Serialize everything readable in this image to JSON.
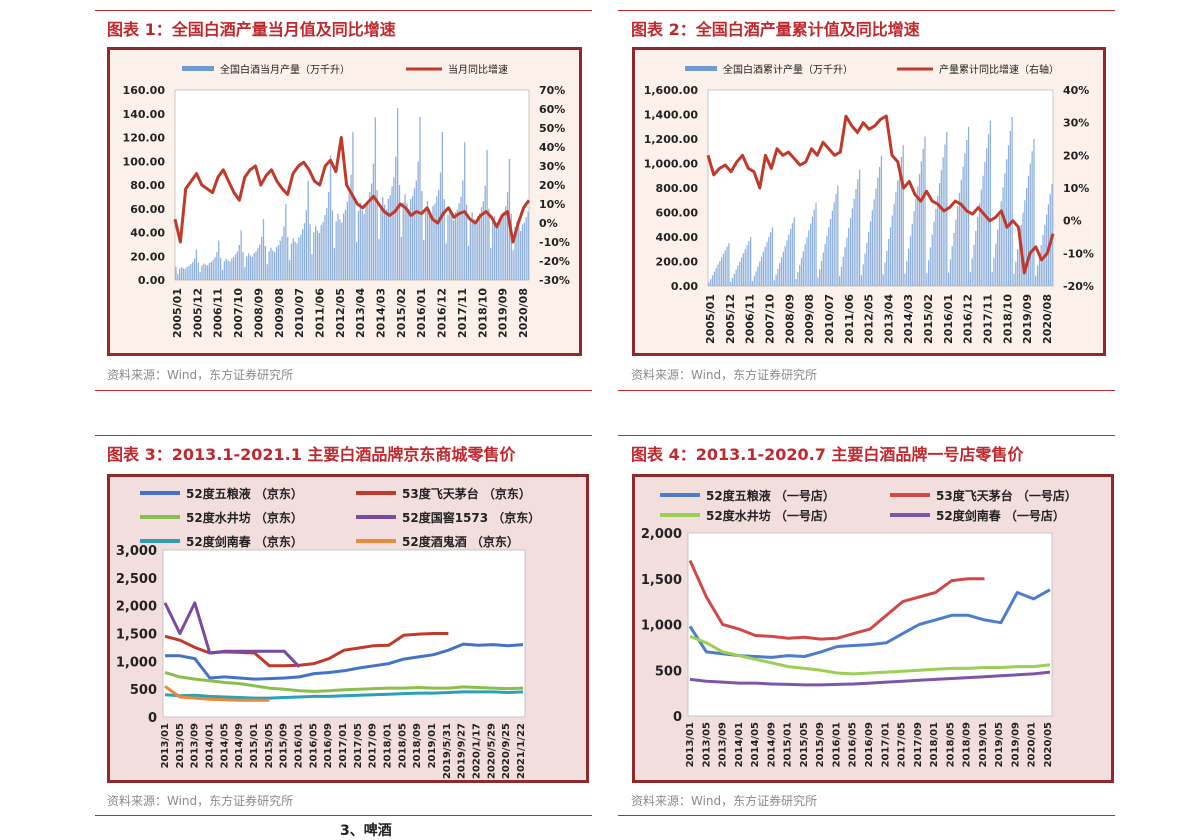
{
  "section_heading": "3、啤酒",
  "charts": [
    {
      "title": "图表 1：全国白酒产量当月值及同比增速",
      "source": "资料来源：Wind，东方证券研究所",
      "chart_data": {
        "type": "bar+line",
        "legend": [
          "全国白酒当月产量（万千升）",
          "当月同比增速"
        ],
        "left_axis": {
          "ticks": [
            "0.00",
            "20.00",
            "40.00",
            "60.00",
            "80.00",
            "100.00",
            "120.00",
            "140.00",
            "160.00"
          ],
          "min": 0,
          "max": 160
        },
        "right_axis": {
          "ticks": [
            "-30%",
            "-20%",
            "-10%",
            "0%",
            "10%",
            "20%",
            "30%",
            "40%",
            "50%",
            "60%",
            "70%"
          ],
          "min": -30,
          "max": 70
        },
        "x_labels": [
          "2005/01",
          "2005/12",
          "2006/11",
          "2007/10",
          "2008/09",
          "2009/08",
          "2010/07",
          "2011/06",
          "2012/05",
          "2013/04",
          "2014/03",
          "2015/02",
          "2016/01",
          "2016/12",
          "2017/11",
          "2018/10",
          "2019/09",
          "2020/08"
        ],
        "bar_envelope": [
          20,
          24,
          28,
          33,
          38,
          44,
          50,
          56,
          66,
          78,
          92,
          105,
          118,
          130,
          136,
          142,
          146,
          140,
          132,
          124,
          118,
          114,
          110,
          106,
          100,
          96
        ],
        "line_values": [
          2,
          -10,
          18,
          22,
          26,
          20,
          18,
          16,
          24,
          28,
          22,
          16,
          12,
          24,
          28,
          30,
          20,
          25,
          28,
          22,
          18,
          15,
          26,
          30,
          32,
          28,
          22,
          20,
          30,
          33,
          27,
          45,
          20,
          15,
          10,
          8,
          11,
          14,
          10,
          6,
          4,
          6,
          10,
          8,
          4,
          6,
          5,
          8,
          2,
          0,
          5,
          8,
          3,
          5,
          6,
          2,
          0,
          4,
          6,
          3,
          -2,
          4,
          6,
          -10,
          0,
          8,
          12
        ]
      }
    },
    {
      "title": "图表 2：全国白酒产量累计值及同比增速",
      "source": "资料来源：Wind，东方证券研究所",
      "chart_data": {
        "type": "bar+line",
        "legend": [
          "全国白酒累计产量（万千升）",
          "产量累计同比增速（右轴）"
        ],
        "left_axis": {
          "ticks": [
            "0.00",
            "200.00",
            "400.00",
            "600.00",
            "800.00",
            "1,000.00",
            "1,200.00",
            "1,400.00",
            "1,600.00"
          ],
          "min": 0,
          "max": 1600
        },
        "right_axis": {
          "ticks": [
            "-20%",
            "-10%",
            "0%",
            "10%",
            "20%",
            "30%",
            "40%"
          ],
          "min": -20,
          "max": 40
        },
        "x_labels": [
          "2005/01",
          "2005/12",
          "2006/11",
          "2007/10",
          "2008/09",
          "2009/08",
          "2010/07",
          "2011/06",
          "2012/05",
          "2013/04",
          "2014/03",
          "2015/02",
          "2016/01",
          "2016/12",
          "2017/11",
          "2018/10",
          "2019/09",
          "2020/08"
        ],
        "annual_totals": [
          350,
          400,
          480,
          560,
          680,
          820,
          950,
          1060,
          1150,
          1220,
          1260,
          1300,
          1350,
          1380,
          1200,
          1000,
          850,
          700
        ],
        "line_values": [
          20,
          14,
          16,
          17,
          15,
          18,
          20,
          16,
          15,
          10,
          20,
          16,
          22,
          20,
          21,
          19,
          17,
          18,
          22,
          20,
          24,
          22,
          20,
          21,
          32,
          29,
          27,
          30,
          28,
          29,
          31,
          32,
          20,
          18,
          10,
          12,
          8,
          6,
          9,
          6,
          5,
          3,
          4,
          6,
          5,
          3,
          2,
          4,
          2,
          0,
          1,
          3,
          -2,
          0,
          -2,
          -16,
          -10,
          -8,
          -12,
          -10,
          -4
        ]
      }
    },
    {
      "title": "图表 3：2013.1-2021.1 主要白酒品牌京东商城零售价",
      "source": "资料来源：Wind，东方证券研究所",
      "chart_data": {
        "type": "line",
        "y_ticks": [
          "0",
          "500",
          "1,000",
          "1,500",
          "2,000",
          "2,500",
          "3,000"
        ],
        "ylim": [
          0,
          3000
        ],
        "x_labels": [
          "2013/01",
          "2013/05",
          "2013/09",
          "2014/01",
          "2014/05",
          "2014/09",
          "2015/01",
          "2015/05",
          "2015/09",
          "2016/01",
          "2016/05",
          "2016/09",
          "2017/01",
          "2017/05",
          "2017/09",
          "2018/01",
          "2018/05",
          "2018/09",
          "2019/01",
          "2019/5/31",
          "2019/9/27",
          "2020/1/17",
          "2020/5/29",
          "2020/9/25",
          "2021/1/22"
        ],
        "series": [
          {
            "name": "52度五粮液 （京东）",
            "color": "#4472c4",
            "values": [
              1100,
              1100,
              1050,
              700,
              720,
              700,
              680,
              690,
              700,
              720,
              780,
              800,
              830,
              880,
              920,
              960,
              1040,
              1080,
              1120,
              1200,
              1310,
              1290,
              1300,
              1280,
              1300
            ]
          },
          {
            "name": "53度飞天茅台 （京东）",
            "color": "#c0392b",
            "values": [
              1450,
              1380,
              1250,
              1150,
              1170,
              1160,
              1150,
              920,
              920,
              930,
              960,
              1050,
              1200,
              1240,
              1280,
              1290,
              1470,
              1490,
              1500,
              1500,
              null,
              null,
              null,
              null,
              null
            ]
          },
          {
            "name": "52度水井坊 （京东）",
            "color": "#8bbf4c",
            "values": [
              800,
              720,
              680,
              650,
              620,
              600,
              560,
              520,
              500,
              470,
              460,
              470,
              490,
              500,
              510,
              520,
              520,
              530,
              520,
              520,
              540,
              530,
              520,
              510,
              520
            ]
          },
          {
            "name": "52度国窖1573 （京东）",
            "color": "#7a4aa0",
            "values": [
              2050,
              1500,
              2050,
              1150,
              1180,
              1180,
              1180,
              1180,
              1180,
              900,
              null,
              null,
              null,
              null,
              null,
              null,
              null,
              null,
              null,
              null,
              null,
              null,
              null,
              null,
              null
            ]
          },
          {
            "name": "52度剑南春 （京东）",
            "color": "#2e9fb5",
            "values": [
              400,
              380,
              390,
              370,
              360,
              350,
              340,
              340,
              350,
              360,
              370,
              370,
              380,
              390,
              400,
              410,
              420,
              430,
              430,
              440,
              450,
              450,
              450,
              440,
              450
            ]
          },
          {
            "name": "52度酒鬼酒 （京东）",
            "color": "#e98a3a",
            "values": [
              550,
              360,
              340,
              320,
              310,
              300,
              300,
              300,
              null,
              null,
              null,
              null,
              null,
              null,
              null,
              null,
              null,
              null,
              null,
              null,
              null,
              null,
              null,
              null,
              null
            ]
          }
        ]
      }
    },
    {
      "title": "图表 4：2013.1-2020.7 主要白酒品牌一号店零售价",
      "source": "资料来源：Wind，东方证券研究所",
      "chart_data": {
        "type": "line",
        "y_ticks": [
          "0",
          "500",
          "1,000",
          "1,500",
          "2,000"
        ],
        "ylim": [
          0,
          2000
        ],
        "x_labels": [
          "2013/01",
          "2013/05",
          "2013/09",
          "2014/01",
          "2014/05",
          "2014/09",
          "2015/01",
          "2015/05",
          "2015/09",
          "2016/01",
          "2016/05",
          "2016/09",
          "2017/01",
          "2017/05",
          "2017/09",
          "2018/01",
          "2018/05",
          "2018/09",
          "2019/01",
          "2019/05",
          "2019/09",
          "2020/01",
          "2020/05"
        ],
        "series": [
          {
            "name": "52度五粮液 （一号店）",
            "color": "#4a7ec9",
            "values": [
              980,
              700,
              680,
              660,
              650,
              640,
              660,
              650,
              700,
              760,
              770,
              780,
              800,
              900,
              1000,
              1050,
              1100,
              1100,
              1050,
              1020,
              1350,
              1280,
              1380
            ]
          },
          {
            "name": "53度飞天茅台 （一号店）",
            "color": "#d04848",
            "values": [
              1700,
              1300,
              1000,
              950,
              880,
              870,
              850,
              860,
              840,
              850,
              900,
              950,
              1100,
              1250,
              1300,
              1350,
              1480,
              1500,
              1500,
              null,
              null,
              null,
              null
            ]
          },
          {
            "name": "52度水井坊 （一号店）",
            "color": "#9ccf55",
            "values": [
              870,
              800,
              700,
              660,
              620,
              580,
              540,
              520,
              500,
              470,
              460,
              470,
              480,
              490,
              500,
              510,
              520,
              520,
              530,
              530,
              540,
              540,
              560
            ]
          },
          {
            "name": "52度剑南春 （一号店）",
            "color": "#7e56a6",
            "values": [
              400,
              380,
              370,
              360,
              360,
              350,
              345,
              340,
              340,
              345,
              350,
              360,
              370,
              380,
              390,
              400,
              410,
              420,
              430,
              440,
              450,
              460,
              480
            ]
          }
        ]
      }
    }
  ]
}
